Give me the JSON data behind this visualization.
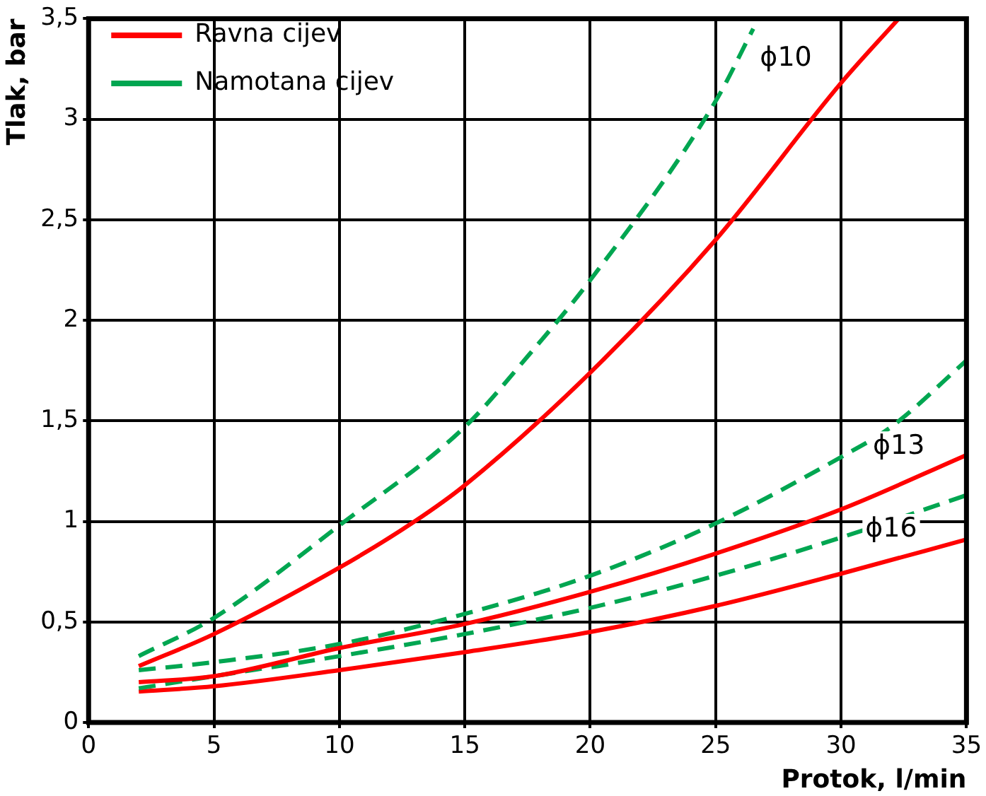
{
  "chart_data": {
    "type": "line",
    "xlabel": "Protok, l/min",
    "ylabel": "Tlak, bar",
    "xlim": [
      0,
      35
    ],
    "ylim": [
      0,
      3.5
    ],
    "xticks": [
      0,
      5,
      10,
      15,
      20,
      25,
      30,
      35
    ],
    "yticks": [
      0,
      {
        "value": 0.5,
        "label": "0,5"
      },
      1,
      {
        "value": 1.5,
        "label": "1,5"
      },
      2,
      {
        "value": 2.5,
        "label": "2,5"
      },
      3,
      {
        "value": 3.5,
        "label": "3,5"
      }
    ],
    "grid": true,
    "legend": "top left",
    "marker": "none",
    "series": [
      {
        "name": "Ravna cijev",
        "color": "#ff0000",
        "line_style": "solid",
        "x": [
          2,
          5,
          10,
          13,
          15,
          20,
          25,
          30,
          32.3
        ],
        "values": [
          0.28,
          0.44,
          0.77,
          1.0,
          1.18,
          1.74,
          2.4,
          3.18,
          3.5
        ]
      },
      {
        "name": "Namotana cijev",
        "color": "#00a651",
        "line_style": "dashed",
        "x": [
          2,
          5,
          10,
          15,
          17.5,
          20,
          25,
          26.5
        ],
        "values": [
          0.33,
          0.52,
          0.98,
          1.47,
          1.82,
          2.2,
          3.09,
          3.45
        ]
      },
      {
        "color": "#ff0000",
        "line_style": "solid",
        "x": [
          2,
          5,
          10,
          15,
          20,
          25,
          30,
          35
        ],
        "values": [
          0.2,
          0.23,
          0.37,
          0.49,
          0.65,
          0.84,
          1.06,
          1.33
        ]
      },
      {
        "color": "#00a651",
        "line_style": "dashed",
        "x": [
          2,
          5,
          10,
          15,
          20,
          25,
          30,
          32,
          35
        ],
        "values": [
          0.26,
          0.3,
          0.39,
          0.54,
          0.73,
          0.99,
          1.32,
          1.47,
          1.8
        ]
      },
      {
        "color": "#00a651",
        "line_style": "dashed",
        "x": [
          2,
          5,
          10,
          15,
          20,
          25,
          30,
          35
        ],
        "values": [
          0.17,
          0.23,
          0.33,
          0.44,
          0.57,
          0.73,
          0.92,
          1.13
        ]
      },
      {
        "color": "#ff0000",
        "line_style": "solid",
        "x": [
          2,
          5,
          10,
          15,
          20,
          25,
          30,
          35
        ],
        "values": [
          0.154,
          0.18,
          0.26,
          0.35,
          0.45,
          0.58,
          0.74,
          0.91
        ]
      }
    ],
    "annotations": [
      {
        "text": "ϕ10",
        "x": 27.8,
        "y": 3.3
      },
      {
        "text": "ϕ13",
        "x": 32.3,
        "y": 1.37
      },
      {
        "text": "ϕ16",
        "x": 32,
        "y": 0.96
      }
    ]
  }
}
